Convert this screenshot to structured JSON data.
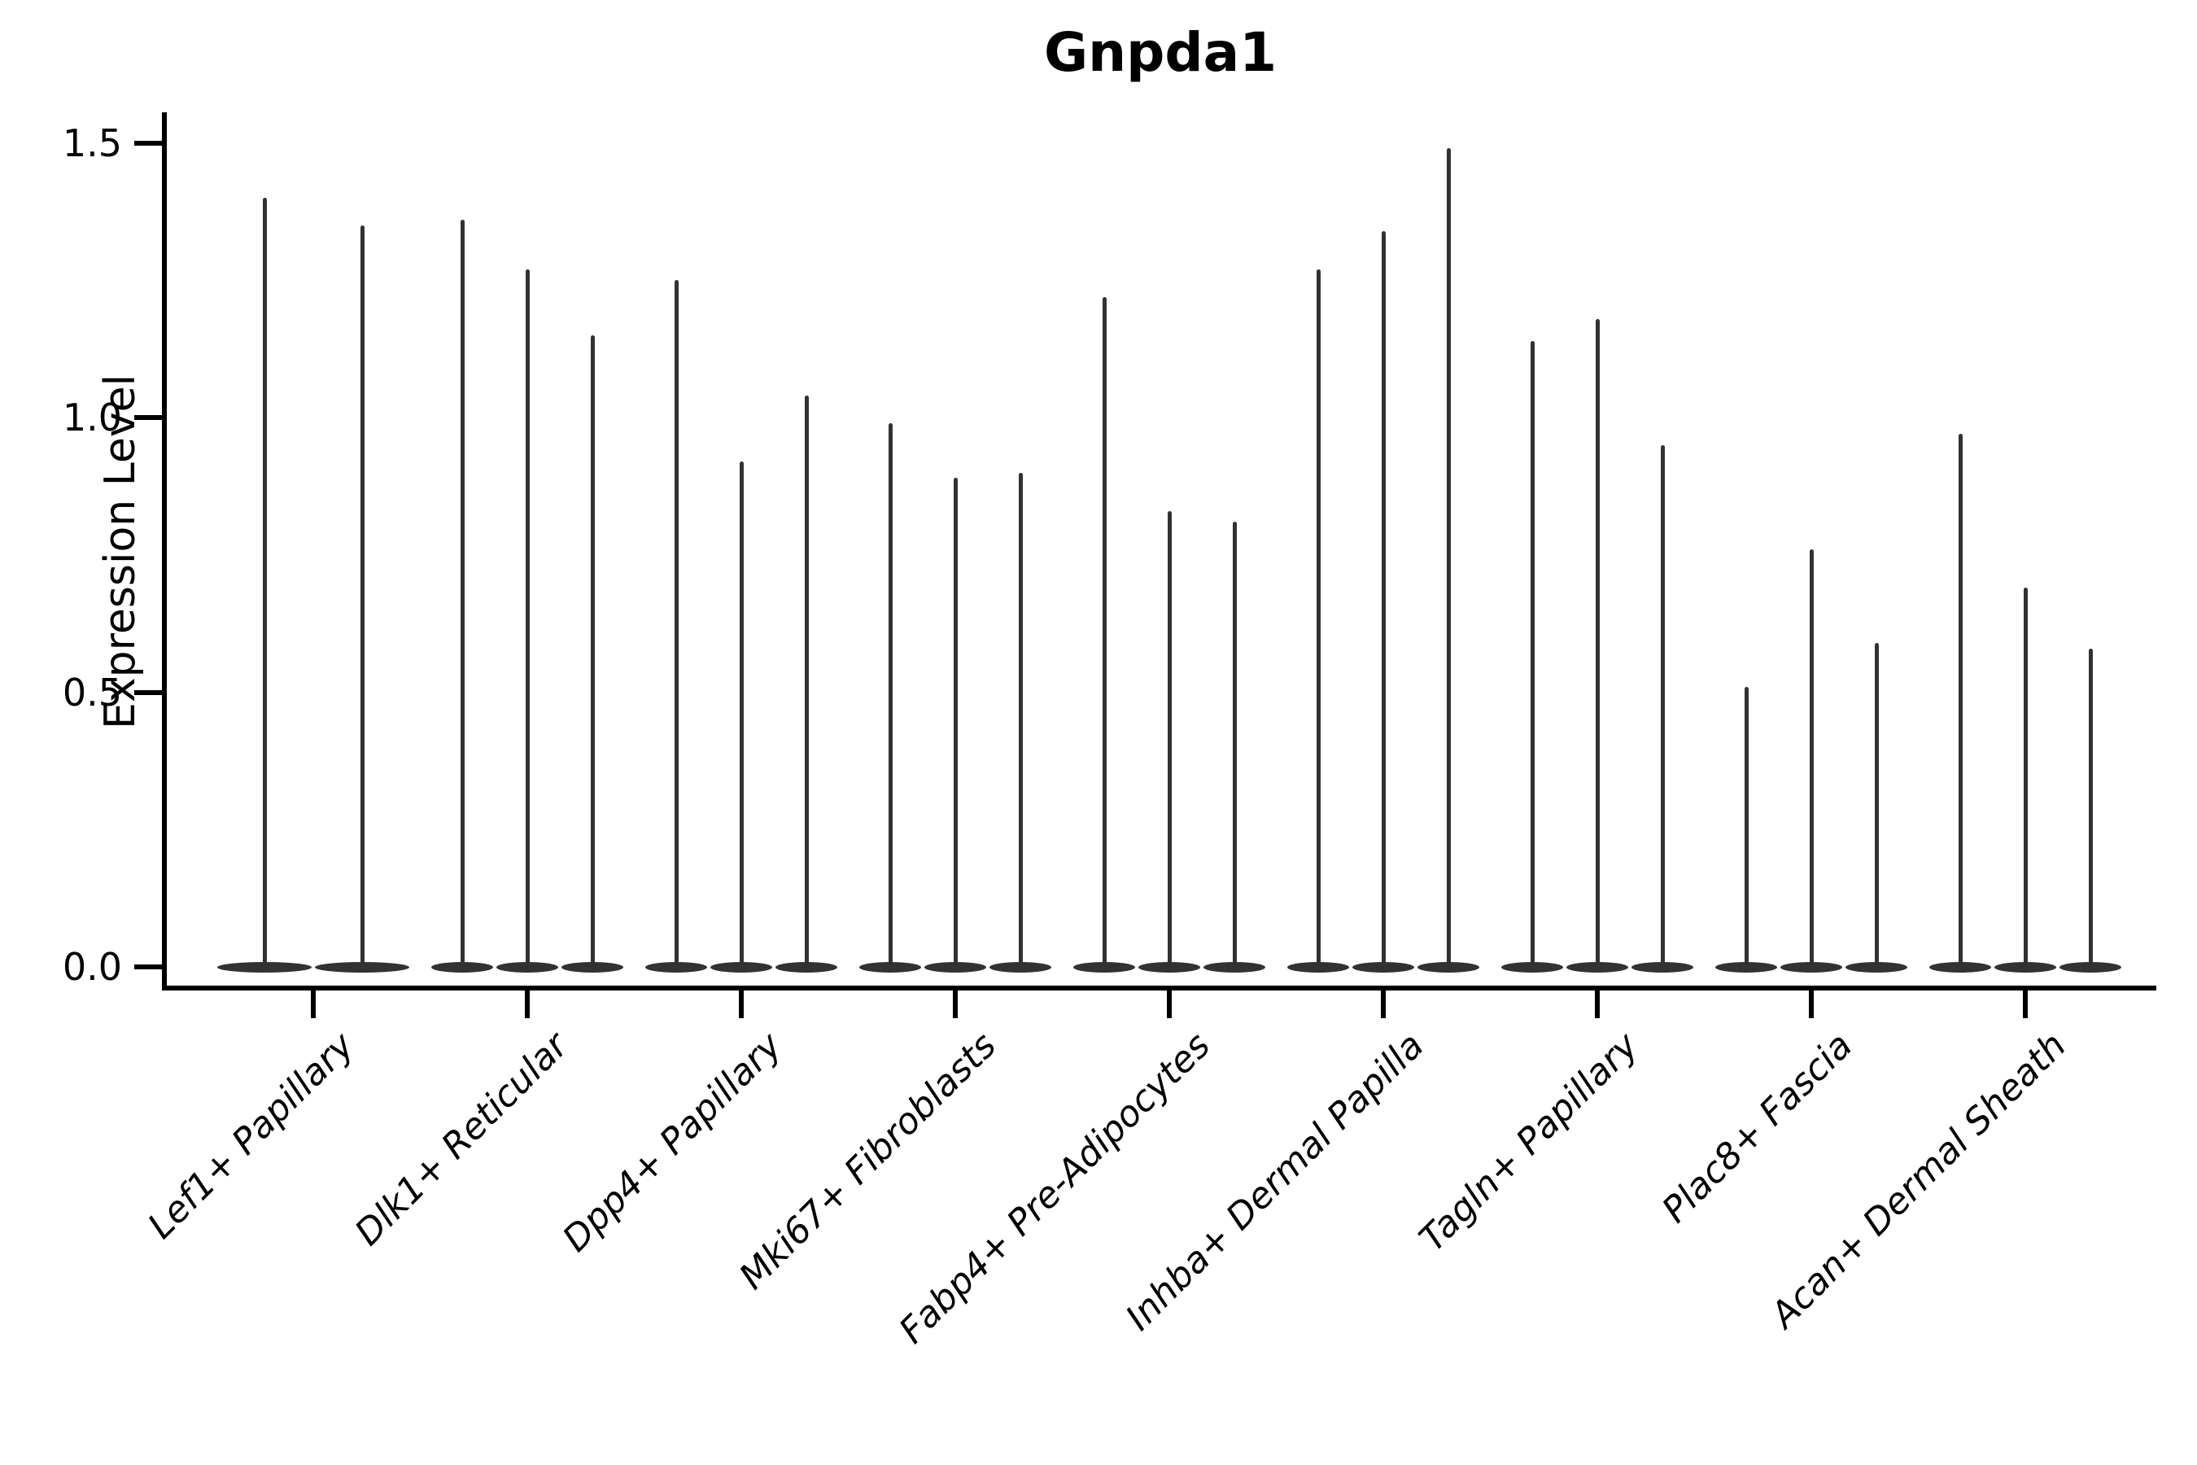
{
  "title": "Gnpda1",
  "chart_data": {
    "type": "violin",
    "title": "Gnpda1",
    "xlabel": "",
    "ylabel": "Expression Level",
    "ylim": [
      0,
      1.58
    ],
    "yticks": [
      0.0,
      0.5,
      1.0,
      1.5
    ],
    "ytick_labels": [
      "0.0",
      "0.5",
      "1.0",
      "1.5"
    ],
    "grid": "off",
    "legend": "none",
    "orientation": "vertical",
    "description": "Violin plot of Gnpda1 expression; each category contains narrow violins (one per sample) shown as a thin spike rising from a wide flat base at 0. Value listed is the maximum expression reached by each violin.",
    "categories": [
      "Lef1+ Papillary",
      "Dlk1+ Reticular",
      "Dpp4+ Papillary",
      "Mki67+ Fibroblasts",
      "Fabp4+ Pre-Adipocytes",
      "Inhba+ Dermal Papilla",
      "Tagln+ Papillary",
      "Plac8+ Fascia",
      "Acan+ Dermal Sheath"
    ],
    "groups": [
      {
        "category": "Lef1+ Papillary",
        "violin_max": [
          1.4,
          1.35
        ]
      },
      {
        "category": "Dlk1+ Reticular",
        "violin_max": [
          1.36,
          1.27,
          1.15
        ]
      },
      {
        "category": "Dpp4+ Papillary",
        "violin_max": [
          1.25,
          0.92,
          1.04
        ]
      },
      {
        "category": "Mki67+ Fibroblasts",
        "violin_max": [
          0.99,
          0.89,
          0.9
        ]
      },
      {
        "category": "Fabp4+ Pre-Adipocytes",
        "violin_max": [
          1.22,
          0.83,
          0.81
        ]
      },
      {
        "category": "Inhba+ Dermal Papilla",
        "violin_max": [
          1.27,
          1.34,
          1.49
        ]
      },
      {
        "category": "Tagln+ Papillary",
        "violin_max": [
          1.14,
          1.18,
          0.95
        ]
      },
      {
        "category": "Plac8+ Fascia",
        "violin_max": [
          0.51,
          0.76,
          0.59
        ]
      },
      {
        "category": "Acan+ Dermal Sheath",
        "violin_max": [
          0.97,
          0.69,
          0.58
        ]
      }
    ],
    "style": {
      "violin_color": "#323232",
      "axis_color": "#000000",
      "text_color": "#000000",
      "background": "#ffffff"
    }
  }
}
